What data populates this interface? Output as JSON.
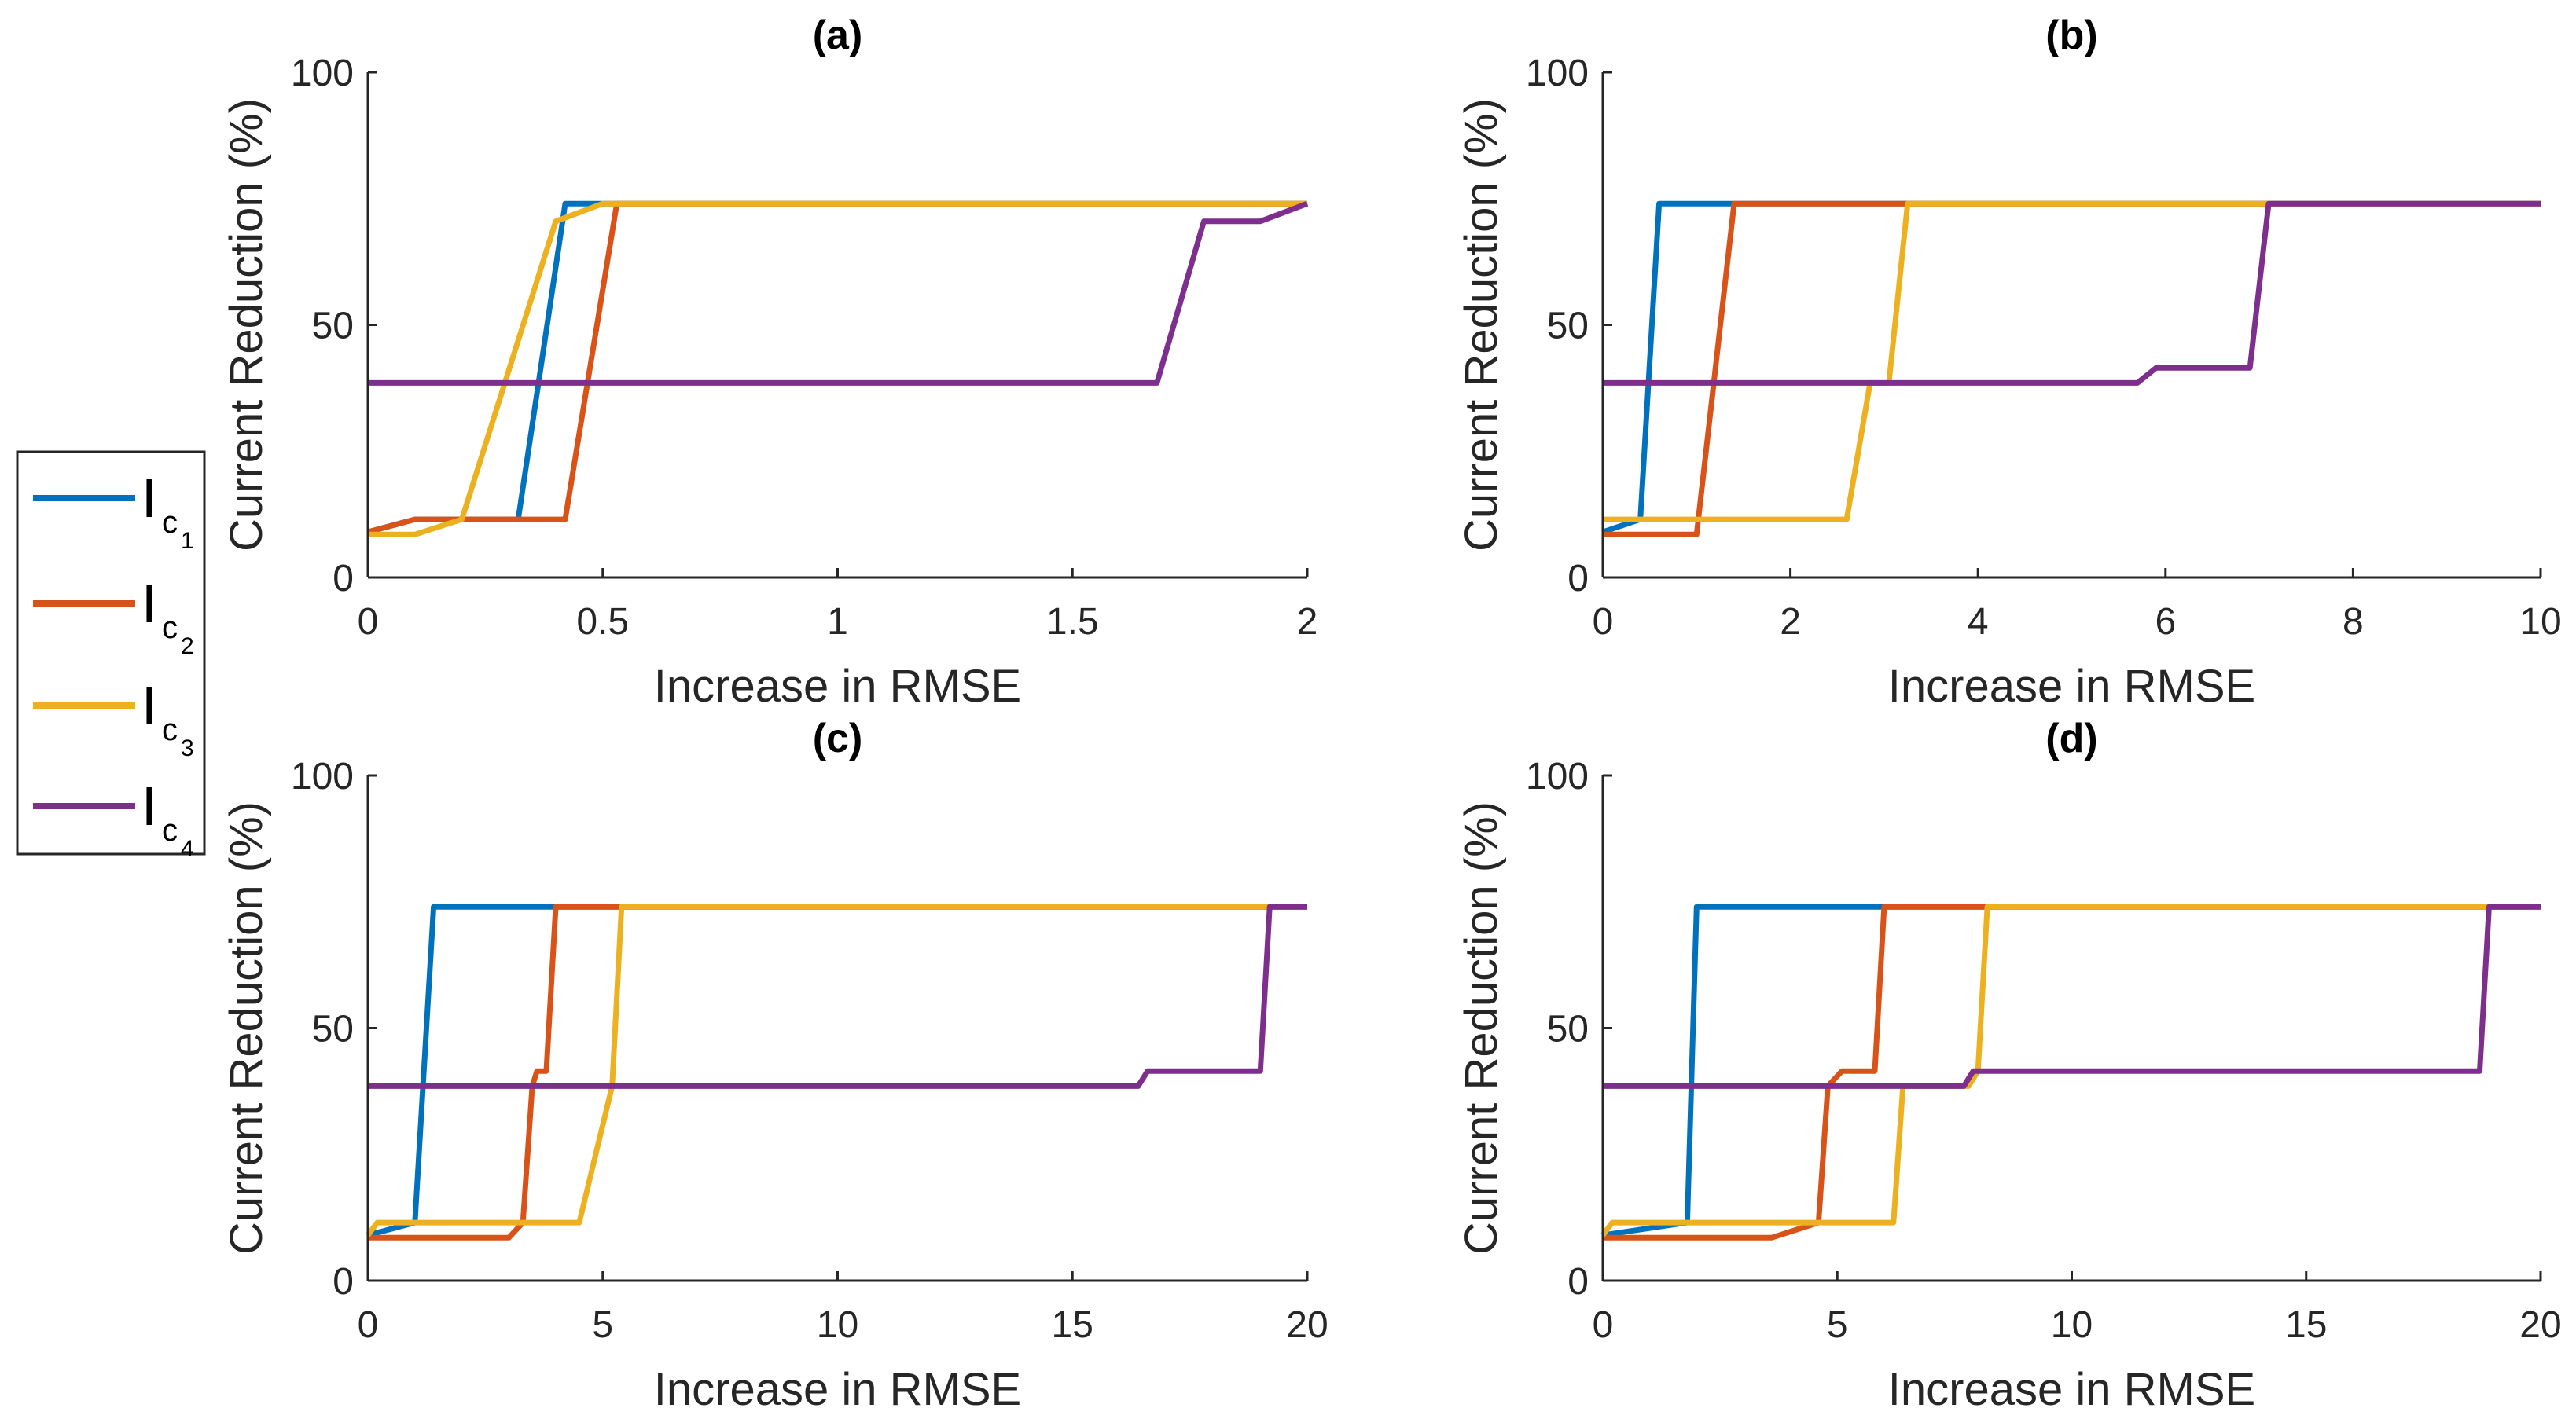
{
  "legend": {
    "entries": [
      {
        "main": "I",
        "sub": "c",
        "subsub": "1",
        "color": "#0072BD"
      },
      {
        "main": "I",
        "sub": "c",
        "subsub": "2",
        "color": "#D95319"
      },
      {
        "main": "I",
        "sub": "c",
        "subsub": "3",
        "color": "#EDB120"
      },
      {
        "main": "I",
        "sub": "c",
        "subsub": "4",
        "color": "#7E2F8E"
      }
    ]
  },
  "chart_data": [
    {
      "type": "line",
      "title": "(a)",
      "xlabel": "Increase in RMSE",
      "ylabel": "Current Reduction (%)",
      "xlim": [
        0,
        2
      ],
      "ylim": [
        0,
        100
      ],
      "xticks": [
        0,
        0.5,
        1,
        1.5,
        2
      ],
      "xtick_labels": [
        "0",
        "0.5",
        "1",
        "1.5",
        "2"
      ],
      "yticks": [
        0,
        50,
        100
      ],
      "ytick_labels": [
        "0",
        "50",
        "100"
      ],
      "series": [
        {
          "name": "Ic1",
          "color": "#0072BD",
          "points": [
            [
              0,
              9
            ],
            [
              0.1,
              11.5
            ],
            [
              0.32,
              11.5
            ],
            [
              0.42,
              74
            ],
            [
              0.52,
              74
            ],
            [
              2,
              74
            ]
          ]
        },
        {
          "name": "Ic2",
          "color": "#D95319",
          "points": [
            [
              0,
              9
            ],
            [
              0.1,
              11.5
            ],
            [
              0.42,
              11.5
            ],
            [
              0.53,
              74
            ],
            [
              2,
              74
            ]
          ]
        },
        {
          "name": "Ic3",
          "color": "#EDB120",
          "points": [
            [
              0,
              8.5
            ],
            [
              0.1,
              8.5
            ],
            [
              0.2,
              11.5
            ],
            [
              0.4,
              70.5
            ],
            [
              0.5,
              74
            ],
            [
              2,
              74
            ]
          ]
        },
        {
          "name": "Ic4",
          "color": "#7E2F8E",
          "points": [
            [
              0,
              38.5
            ],
            [
              1.68,
              38.5
            ],
            [
              1.78,
              70.5
            ],
            [
              1.9,
              70.5
            ],
            [
              2,
              74
            ]
          ]
        }
      ]
    },
    {
      "type": "line",
      "title": "(b)",
      "xlabel": "Increase in RMSE",
      "ylabel": "Current Reduction (%)",
      "xlim": [
        0,
        10
      ],
      "ylim": [
        0,
        100
      ],
      "xticks": [
        0,
        2,
        4,
        6,
        8,
        10
      ],
      "xtick_labels": [
        "0",
        "2",
        "4",
        "6",
        "8",
        "10"
      ],
      "yticks": [
        0,
        50,
        100
      ],
      "ytick_labels": [
        "0",
        "50",
        "100"
      ],
      "series": [
        {
          "name": "Ic1",
          "color": "#0072BD",
          "points": [
            [
              0,
              9
            ],
            [
              0.4,
              11.5
            ],
            [
              0.6,
              74
            ],
            [
              1.4,
              74
            ],
            [
              10,
              74
            ]
          ]
        },
        {
          "name": "Ic2",
          "color": "#D95319",
          "points": [
            [
              0,
              8.5
            ],
            [
              1.0,
              8.5
            ],
            [
              1.4,
              74
            ],
            [
              3.2,
              74
            ],
            [
              10,
              74
            ]
          ]
        },
        {
          "name": "Ic3",
          "color": "#EDB120",
          "points": [
            [
              0,
              11.5
            ],
            [
              2.6,
              11.5
            ],
            [
              2.85,
              38.5
            ],
            [
              3.05,
              38.5
            ],
            [
              3.25,
              74
            ],
            [
              7.1,
              74
            ],
            [
              10,
              74
            ]
          ]
        },
        {
          "name": "Ic4",
          "color": "#7E2F8E",
          "points": [
            [
              0,
              38.5
            ],
            [
              5.7,
              38.5
            ],
            [
              5.9,
              41.5
            ],
            [
              6.9,
              41.5
            ],
            [
              7.1,
              74
            ],
            [
              10,
              74
            ]
          ]
        }
      ]
    },
    {
      "type": "line",
      "title": "(c)",
      "xlabel": "Increase in RMSE",
      "ylabel": "Current Reduction (%)",
      "xlim": [
        0,
        20
      ],
      "ylim": [
        0,
        100
      ],
      "xticks": [
        0,
        5,
        10,
        15,
        20
      ],
      "xtick_labels": [
        "0",
        "5",
        "10",
        "15",
        "20"
      ],
      "yticks": [
        0,
        50,
        100
      ],
      "ytick_labels": [
        "0",
        "50",
        "100"
      ],
      "series": [
        {
          "name": "Ic1",
          "color": "#0072BD",
          "points": [
            [
              0,
              9
            ],
            [
              1.0,
              11.5
            ],
            [
              1.4,
              74
            ],
            [
              4.0,
              74
            ],
            [
              20,
              74
            ]
          ]
        },
        {
          "name": "Ic2",
          "color": "#D95319",
          "points": [
            [
              0,
              8.5
            ],
            [
              3.0,
              8.5
            ],
            [
              3.3,
              11.5
            ],
            [
              3.5,
              38.5
            ],
            [
              3.6,
              41.5
            ],
            [
              3.8,
              41.5
            ],
            [
              4.0,
              74
            ],
            [
              5.4,
              74
            ],
            [
              20,
              74
            ]
          ]
        },
        {
          "name": "Ic3",
          "color": "#EDB120",
          "points": [
            [
              0,
              9
            ],
            [
              0.2,
              11.5
            ],
            [
              4.5,
              11.5
            ],
            [
              5.2,
              38.5
            ],
            [
              5.4,
              74
            ],
            [
              20,
              74
            ]
          ]
        },
        {
          "name": "Ic4",
          "color": "#7E2F8E",
          "points": [
            [
              0,
              38.5
            ],
            [
              16.4,
              38.5
            ],
            [
              16.6,
              41.5
            ],
            [
              19.0,
              41.5
            ],
            [
              19.2,
              74
            ],
            [
              20,
              74
            ]
          ]
        }
      ]
    },
    {
      "type": "line",
      "title": "(d)",
      "xlabel": "Increase in RMSE",
      "ylabel": "Current Reduction (%)",
      "xlim": [
        0,
        20
      ],
      "ylim": [
        0,
        100
      ],
      "xticks": [
        0,
        5,
        10,
        15,
        20
      ],
      "xtick_labels": [
        "0",
        "5",
        "10",
        "15",
        "20"
      ],
      "yticks": [
        0,
        50,
        100
      ],
      "ytick_labels": [
        "0",
        "50",
        "100"
      ],
      "series": [
        {
          "name": "Ic1",
          "color": "#0072BD",
          "points": [
            [
              0,
              9
            ],
            [
              1.8,
              11.5
            ],
            [
              2.0,
              74
            ],
            [
              6.0,
              74
            ],
            [
              20,
              74
            ]
          ]
        },
        {
          "name": "Ic2",
          "color": "#D95319",
          "points": [
            [
              0,
              8.5
            ],
            [
              3.6,
              8.5
            ],
            [
              4.6,
              11.5
            ],
            [
              4.8,
              38.5
            ],
            [
              5.1,
              41.5
            ],
            [
              5.8,
              41.5
            ],
            [
              6.0,
              74
            ],
            [
              8.2,
              74
            ],
            [
              20,
              74
            ]
          ]
        },
        {
          "name": "Ic3",
          "color": "#EDB120",
          "points": [
            [
              0,
              9
            ],
            [
              0.2,
              11.5
            ],
            [
              6.2,
              11.5
            ],
            [
              6.4,
              38.5
            ],
            [
              7.8,
              38.5
            ],
            [
              8.0,
              41.5
            ],
            [
              8.2,
              74
            ],
            [
              20,
              74
            ]
          ]
        },
        {
          "name": "Ic4",
          "color": "#7E2F8E",
          "points": [
            [
              0,
              38.5
            ],
            [
              7.7,
              38.5
            ],
            [
              7.9,
              41.5
            ],
            [
              18.7,
              41.5
            ],
            [
              18.9,
              74
            ],
            [
              20,
              74
            ]
          ]
        }
      ]
    }
  ]
}
